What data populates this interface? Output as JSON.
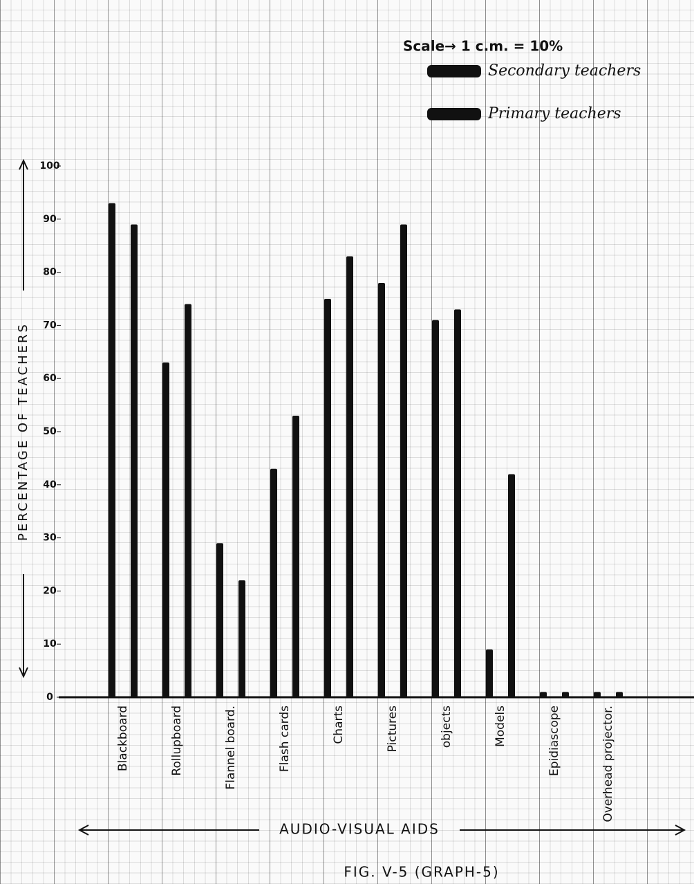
{
  "chart_data": {
    "type": "bar",
    "scale": "Scale→ 1 c.m. = 10%",
    "y_label": "PERCENTAGE OF TEACHERS",
    "x_label": "AUDIO-VISUAL AIDS",
    "caption": "FIG. V-5 (GRAPH-5)",
    "categories": [
      "Blackboard",
      "Rollupboard",
      "Flannel board.",
      "Flash cards",
      "Charts",
      "Pictures",
      "objects",
      "Models",
      "Epidiascope",
      "Overhead projector."
    ],
    "series": [
      {
        "name": "Secondary teachers",
        "color": "#111111",
        "values": [
          93,
          63,
          29,
          43,
          75,
          78,
          71,
          9,
          1,
          1
        ]
      },
      {
        "name": "Primary teachers",
        "color": "#111111",
        "values": [
          89,
          74,
          22,
          53,
          83,
          89,
          73,
          42,
          1,
          1
        ]
      }
    ],
    "ylim": [
      0,
      100
    ],
    "yticks": [
      0,
      10,
      20,
      30,
      40,
      50,
      60,
      70,
      80,
      90,
      100
    ]
  }
}
